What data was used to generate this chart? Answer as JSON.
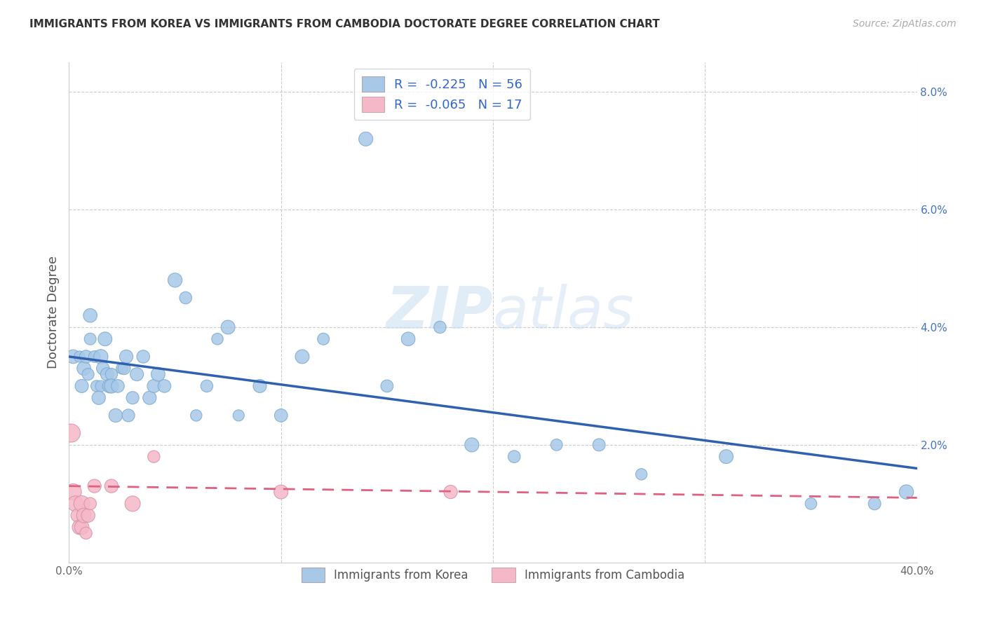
{
  "title": "IMMIGRANTS FROM KOREA VS IMMIGRANTS FROM CAMBODIA DOCTORATE DEGREE CORRELATION CHART",
  "source": "Source: ZipAtlas.com",
  "ylabel": "Doctorate Degree",
  "xlim": [
    0.0,
    0.4
  ],
  "ylim": [
    0.0,
    0.085
  ],
  "xticks": [
    0.0,
    0.1,
    0.2,
    0.3,
    0.4
  ],
  "xtick_labels": [
    "0.0%",
    "",
    "",
    "",
    "40.0%"
  ],
  "yticks": [
    0.0,
    0.02,
    0.04,
    0.06,
    0.08
  ],
  "ytick_labels": [
    "",
    "2.0%",
    "4.0%",
    "6.0%",
    "8.0%"
  ],
  "korea_R": -0.225,
  "korea_N": 56,
  "cambodia_R": -0.065,
  "cambodia_N": 17,
  "korea_color": "#a8c8e8",
  "cambodia_color": "#f5b8c8",
  "korea_line_color": "#3060b0",
  "cambodia_line_color": "#e06080",
  "background_color": "#ffffff",
  "grid_color": "#cccccc",
  "watermark": "ZIPatlas",
  "korea_x": [
    0.002,
    0.005,
    0.006,
    0.007,
    0.008,
    0.009,
    0.01,
    0.01,
    0.012,
    0.013,
    0.014,
    0.015,
    0.015,
    0.016,
    0.017,
    0.018,
    0.019,
    0.02,
    0.02,
    0.022,
    0.023,
    0.025,
    0.026,
    0.027,
    0.028,
    0.03,
    0.032,
    0.035,
    0.038,
    0.04,
    0.042,
    0.045,
    0.05,
    0.055,
    0.06,
    0.065,
    0.07,
    0.075,
    0.08,
    0.09,
    0.1,
    0.11,
    0.12,
    0.14,
    0.15,
    0.16,
    0.175,
    0.19,
    0.21,
    0.23,
    0.25,
    0.27,
    0.31,
    0.35,
    0.38,
    0.395
  ],
  "korea_y": [
    0.035,
    0.035,
    0.03,
    0.033,
    0.035,
    0.032,
    0.038,
    0.042,
    0.035,
    0.03,
    0.028,
    0.035,
    0.03,
    0.033,
    0.038,
    0.032,
    0.03,
    0.032,
    0.03,
    0.025,
    0.03,
    0.033,
    0.033,
    0.035,
    0.025,
    0.028,
    0.032,
    0.035,
    0.028,
    0.03,
    0.032,
    0.03,
    0.048,
    0.045,
    0.025,
    0.03,
    0.038,
    0.04,
    0.025,
    0.03,
    0.025,
    0.035,
    0.038,
    0.072,
    0.03,
    0.038,
    0.04,
    0.02,
    0.018,
    0.02,
    0.02,
    0.015,
    0.018,
    0.01,
    0.01,
    0.012
  ],
  "cambodia_x": [
    0.001,
    0.002,
    0.003,
    0.004,
    0.005,
    0.006,
    0.006,
    0.007,
    0.008,
    0.009,
    0.01,
    0.012,
    0.02,
    0.03,
    0.04,
    0.1,
    0.18
  ],
  "cambodia_y": [
    0.022,
    0.012,
    0.01,
    0.008,
    0.006,
    0.01,
    0.006,
    0.008,
    0.005,
    0.008,
    0.01,
    0.013,
    0.013,
    0.01,
    0.018,
    0.012,
    0.012
  ],
  "korea_line_x0": 0.0,
  "korea_line_y0": 0.035,
  "korea_line_x1": 0.4,
  "korea_line_y1": 0.016,
  "cambodia_line_x0": 0.0,
  "cambodia_line_y0": 0.013,
  "cambodia_line_x1": 0.4,
  "cambodia_line_y1": 0.011
}
